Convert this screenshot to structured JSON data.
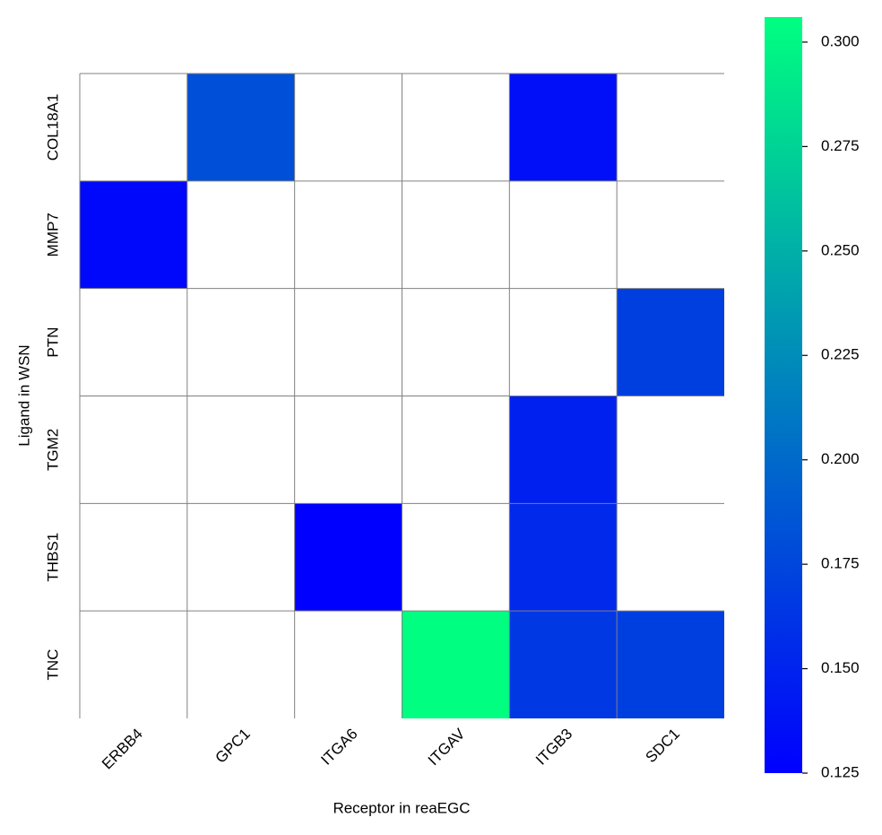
{
  "chart_data": {
    "type": "heatmap",
    "x_label": "Receptor in reaEGC",
    "y_label": "Ligand in WSN",
    "categories": [
      "ERBB4",
      "GPC1",
      "ITGA6",
      "ITGAV",
      "ITGB3",
      "SDC1"
    ],
    "rows": [
      "COL18A1",
      "MMP7",
      "PTN",
      "TGM2",
      "THBS1",
      "TNC"
    ],
    "values": [
      [
        null,
        0.181,
        null,
        null,
        0.136,
        null
      ],
      [
        0.131,
        null,
        null,
        null,
        null,
        null
      ],
      [
        null,
        null,
        null,
        null,
        null,
        0.17
      ],
      [
        null,
        null,
        null,
        null,
        0.148,
        null
      ],
      [
        null,
        null,
        0.125,
        null,
        0.154,
        null
      ],
      [
        null,
        null,
        null,
        0.306,
        0.165,
        0.17
      ]
    ],
    "colormap": [
      "#0000ff",
      "#00ff80"
    ],
    "clim": [
      0.125,
      0.306
    ],
    "cticks": [
      0.125,
      {
        "value": 0.15,
        "label": "0.150"
      },
      0.175,
      {
        "value": 0.2,
        "label": "0.200"
      },
      0.225,
      {
        "value": 0.25,
        "label": "0.250"
      },
      0.275,
      {
        "value": 0.3,
        "label": "0.300"
      }
    ]
  }
}
